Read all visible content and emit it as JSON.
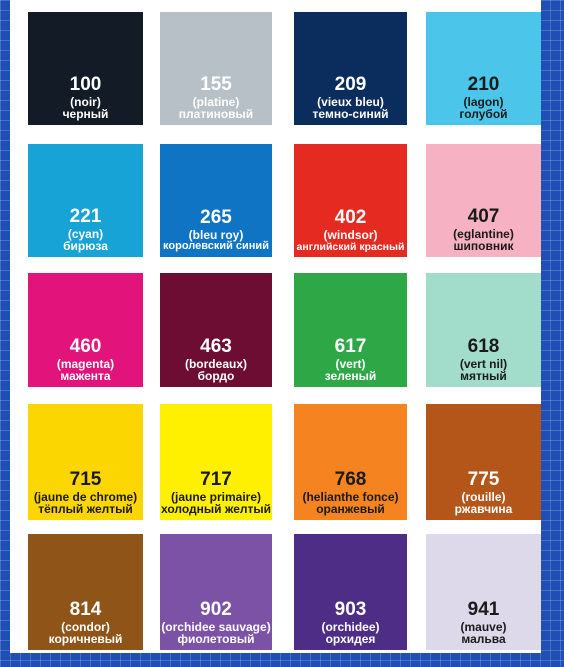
{
  "swatches": [
    {
      "code": "100",
      "fr": "(noir)",
      "ru": "черный",
      "color": "#121b26",
      "text": "dark"
    },
    {
      "code": "155",
      "fr": "(platine)",
      "ru": "платиновый",
      "color": "#b7c0c7",
      "text": "dark"
    },
    {
      "code": "209",
      "fr": "(vieux bleu)",
      "ru": "темно-синий",
      "color": "#0a2d5e",
      "text": "dark"
    },
    {
      "code": "210",
      "fr": "(lagon)",
      "ru": "голубой",
      "color": "#4cc5ea",
      "text": "light"
    },
    {
      "code": "221",
      "fr": "(cyan)",
      "ru": "бирюза",
      "color": "#17a3d6",
      "text": "dark"
    },
    {
      "code": "265",
      "fr": "(bleu roy)",
      "ru": "королевский синий",
      "color": "#0f74c4",
      "text": "dark"
    },
    {
      "code": "402",
      "fr": "(windsor)",
      "ru": "английский красный",
      "color": "#e52b21",
      "text": "dark"
    },
    {
      "code": "407",
      "fr": "(eglantine)",
      "ru": "шиповник",
      "color": "#f6b2c2",
      "text": "light"
    },
    {
      "code": "460",
      "fr": "(magenta)",
      "ru": "мажента",
      "color": "#e2137a",
      "text": "dark"
    },
    {
      "code": "463",
      "fr": "(bordeaux)",
      "ru": "бордо",
      "color": "#6e0d34",
      "text": "dark"
    },
    {
      "code": "617",
      "fr": "(vert)",
      "ru": "зеленый",
      "color": "#2ea847",
      "text": "dark"
    },
    {
      "code": "618",
      "fr": "(vert nil)",
      "ru": "мятный",
      "color": "#a2dccb",
      "text": "light"
    },
    {
      "code": "715",
      "fr": "(jaune de chrome)",
      "ru": "тёплый желтый",
      "color": "#fcd600",
      "text": "light"
    },
    {
      "code": "717",
      "fr": "(jaune primaire)",
      "ru": "холодный желтый",
      "color": "#fff000",
      "text": "light"
    },
    {
      "code": "768",
      "fr": "(helianthe fonce)",
      "ru": "оранжевый",
      "color": "#f58420",
      "text": "light"
    },
    {
      "code": "775",
      "fr": "(rouille)",
      "ru": "ржавчина",
      "color": "#b4561a",
      "text": "dark"
    },
    {
      "code": "814",
      "fr": "(condor)",
      "ru": "коричневый",
      "color": "#8f5417",
      "text": "dark"
    },
    {
      "code": "902",
      "fr": "(orchidee sauvage)",
      "ru": "фиолетовый",
      "color": "#7c52a6",
      "text": "dark"
    },
    {
      "code": "903",
      "fr": "(orchidee)",
      "ru": "орхидея",
      "color": "#4e2d86",
      "text": "dark"
    },
    {
      "code": "941",
      "fr": "(mauve)",
      "ru": "мальва",
      "color": "#ddd8ea",
      "text": "light"
    }
  ]
}
